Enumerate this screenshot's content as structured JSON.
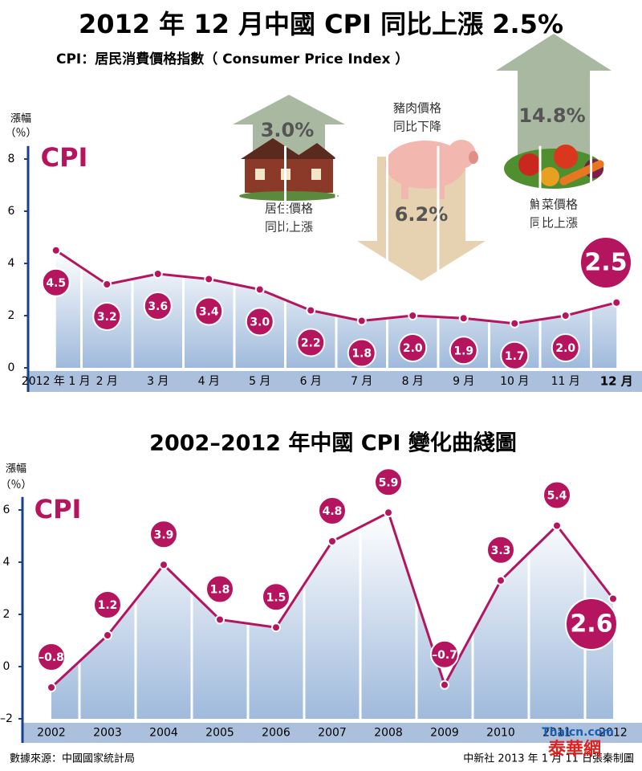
{
  "title": "2012 年 12 月中國 CPI 同比上漲 2.5%",
  "subtitle": "CPI：居民消費價格指數（ Consumer Price Index ）",
  "annotations": [
    {
      "value": "3.0%",
      "lines": [
        "居住價格",
        "同比上漲"
      ]
    },
    {
      "value": "6.2%",
      "lines": [
        "豬肉價格",
        "同比下降"
      ]
    },
    {
      "value": "14.8%",
      "lines": [
        "鮮菜價格",
        "同比上漲"
      ]
    }
  ],
  "chart_data": [
    {
      "type": "line",
      "ylabel": [
        "漲幅",
        "（％）"
      ],
      "categories": [
        "2012 年 1 月",
        "2 月",
        "3 月",
        "4 月",
        "5 月",
        "6 月",
        "7 月",
        "8 月",
        "9 月",
        "10 月",
        "11 月",
        "12 月"
      ],
      "series": [
        {
          "name": "CPI",
          "color": "#b5155e",
          "values": [
            4.5,
            3.2,
            3.6,
            3.4,
            3.0,
            2.2,
            1.8,
            2.0,
            1.9,
            1.7,
            2.0,
            2.5
          ],
          "value_labels": [
            "4.5",
            "3.2",
            "3.6",
            "3.4",
            "3.0",
            "2.2",
            "1.8",
            "2.0",
            "1.9",
            "1.7",
            "2.0",
            "2.5"
          ]
        }
      ],
      "ylim": [
        0,
        8.5
      ],
      "yticks": [
        0,
        2,
        4,
        6,
        8
      ]
    },
    {
      "type": "line",
      "title": "2002–2012 年中國 CPI 變化曲綫圖",
      "ylabel": [
        "漲幅",
        "（％）"
      ],
      "categories": [
        "2002",
        "2003",
        "2004",
        "2005",
        "2006",
        "2007",
        "2008",
        "2009",
        "2010",
        "2011",
        "2012"
      ],
      "series": [
        {
          "name": "CPI",
          "color": "#b5155e",
          "values": [
            -0.8,
            1.2,
            3.9,
            1.8,
            1.5,
            4.8,
            5.9,
            -0.7,
            3.3,
            5.4,
            2.6
          ],
          "value_labels": [
            "–0.8",
            "1.2",
            "3.9",
            "1.8",
            "1.5",
            "4.8",
            "5.9",
            "–0.7",
            "3.3",
            "5.4",
            "2.6"
          ]
        }
      ],
      "ylim": [
        -2,
        6.5
      ],
      "yticks": [
        {
          "value": -2,
          "label": "–2"
        },
        0,
        2,
        4,
        6
      ]
    }
  ],
  "footer": {
    "source": "數據來源：中國國家統計局",
    "credit": "中新社 2013 年 1 月 11 日張秦制圖",
    "watermark": [
      "Thaicn.com",
      "泰華網"
    ]
  }
}
